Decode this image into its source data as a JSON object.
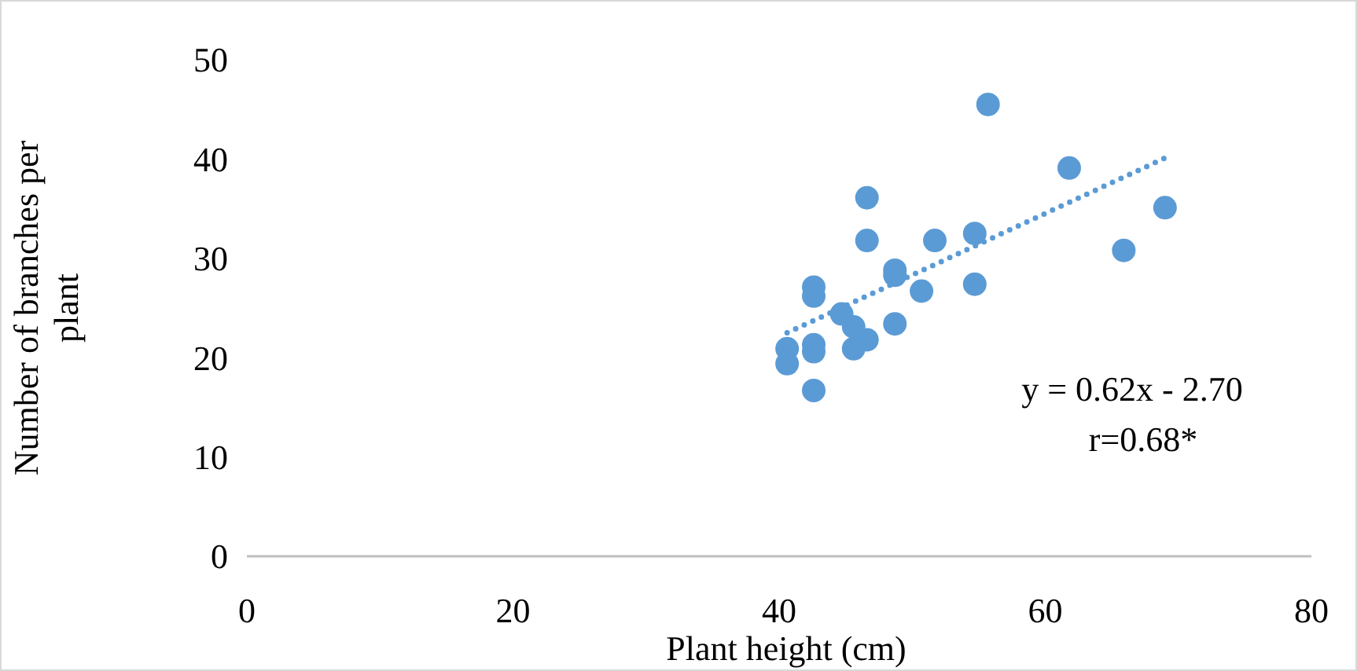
{
  "chart_data": {
    "type": "scatter",
    "xlabel": "Plant height (cm)",
    "ylabel": "Number of branches per plant",
    "xlim": [
      0,
      80
    ],
    "xticks": [
      0,
      20,
      40,
      60,
      80
    ],
    "ylim": [
      0,
      50
    ],
    "yticks": [
      0,
      10,
      20,
      30,
      40,
      50
    ],
    "grid": false,
    "annotations": [
      "y = 0.62x - 2.70",
      "r=0.68*"
    ],
    "series": [
      {
        "color": "#5b9bd5",
        "marker": "circle",
        "x": [
          55.7,
          61.8,
          69.0,
          65.9,
          46.6,
          46.6,
          51.7,
          54.7,
          54.7,
          48.7,
          48.7,
          50.7,
          48.7,
          42.6,
          42.6,
          44.7,
          45.6,
          46.6,
          45.6,
          42.6,
          42.6,
          40.6,
          40.6,
          42.6
        ],
        "values": [
          45.5,
          39.1,
          35.1,
          30.8,
          36.1,
          31.8,
          31.8,
          32.5,
          27.4,
          28.8,
          28.3,
          26.7,
          23.4,
          27.1,
          26.2,
          24.4,
          23.1,
          21.8,
          20.9,
          21.3,
          20.6,
          20.9,
          19.4,
          16.7
        ]
      },
      {
        "type": "line",
        "color": "#5b9bd5",
        "line_style": "dotted",
        "x": [
          40.6,
          69.0
        ],
        "values": [
          22.5,
          40.1
        ]
      }
    ]
  }
}
